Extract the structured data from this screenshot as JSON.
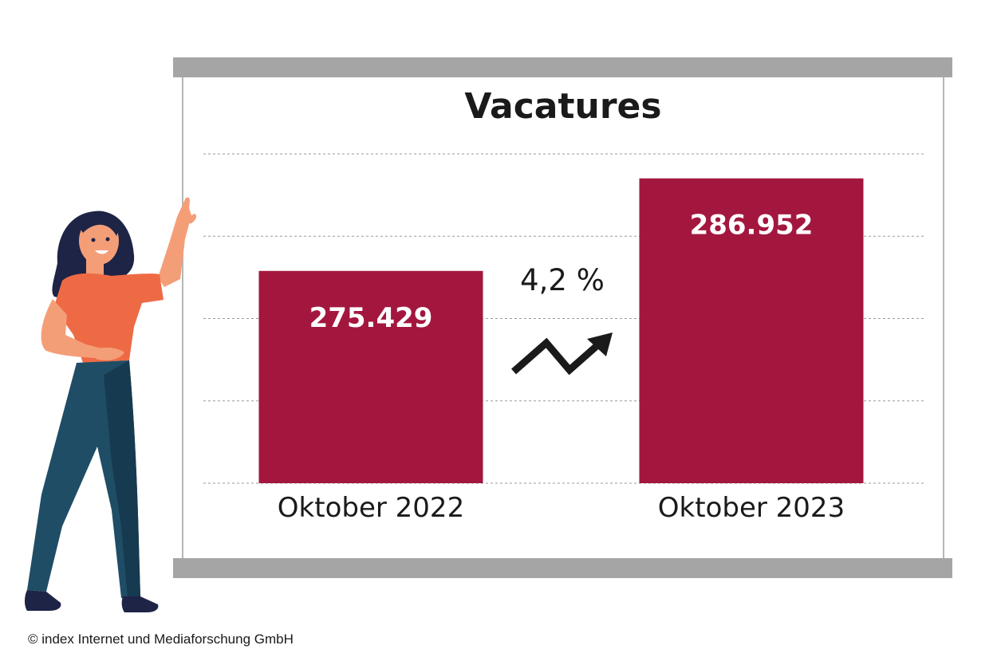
{
  "chart_data": {
    "type": "bar",
    "title": "Vacatures",
    "categories": [
      "Oktober 2022",
      "Oktober 2023"
    ],
    "values": [
      275429,
      286952
    ],
    "value_labels": [
      "275.429",
      "286.952"
    ],
    "ylim": [
      249000,
      290000
    ],
    "grid": true,
    "bar_color": "#a3173e",
    "change_label": "4,2 %"
  },
  "icons": {
    "trend": "trend-up-arrow-icon",
    "illustration": "woman-pointing-illustration"
  },
  "footer": {
    "credit": "© index Internet und Mediaforschung GmbH"
  }
}
